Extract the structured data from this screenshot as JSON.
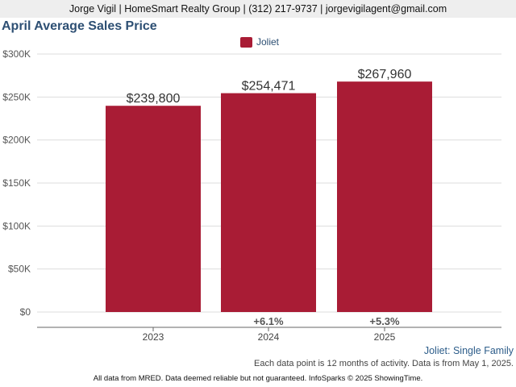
{
  "header": {
    "contact": "Jorge Vigil | HomeSmart Realty Group | (312) 217-9737 | jorgevigilagent@gmail.com"
  },
  "chart_data": {
    "type": "bar",
    "title": "April Average Sales Price",
    "categories": [
      "2023",
      "2024",
      "2025"
    ],
    "series": [
      {
        "name": "Joliet",
        "values": [
          239800,
          254471,
          267960
        ],
        "color": "#a91c35"
      }
    ],
    "data_labels": [
      "$239,800",
      "$254,471",
      "$267,960"
    ],
    "change_labels": [
      "",
      "+6.1%",
      "+5.3%"
    ],
    "y_ticks": [
      0,
      50000,
      100000,
      150000,
      200000,
      250000,
      300000
    ],
    "y_tick_labels": [
      "$0",
      "$50K",
      "$100K",
      "$150K",
      "$200K",
      "$250K",
      "$300K"
    ],
    "ylim": [
      0,
      300000
    ],
    "grid": true,
    "legend_position": "top-center"
  },
  "subtitle": "Joliet: Single Family",
  "note": "Each data point is 12 months of activity. Data is from May 1, 2025.",
  "footer": "All data from MRED. Data deemed reliable but not guaranteed. InfoSparks © 2025 ShowingTime."
}
